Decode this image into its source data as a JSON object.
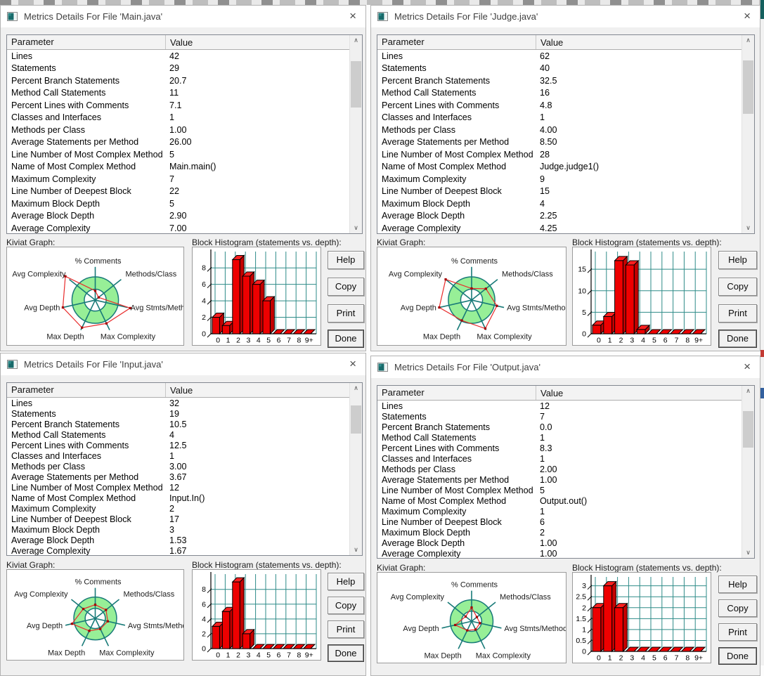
{
  "icons": {
    "close": "×",
    "scroll_up": "∧",
    "scroll_down": "∨",
    "app_icon": "metrics-app-icon"
  },
  "colors": {
    "teal_accent": "#187a78",
    "kiviat_ring_green": "#97ef97",
    "kiviat_line_red": "#e82c2c",
    "bar_red": "#ee0000",
    "bar_side_red": "#c40000",
    "grid_teal": "#2e8b88",
    "titlebar_bg": "#ffffff",
    "window_bg": "#f0f0f0"
  },
  "windows": [
    {
      "title": "Metrics Details For File 'Main.java'",
      "table": {
        "columns": [
          "Parameter",
          "Value"
        ],
        "rows": [
          [
            "Lines",
            "42"
          ],
          [
            "Statements",
            "29"
          ],
          [
            "Percent Branch Statements",
            "20.7"
          ],
          [
            "Method Call Statements",
            "11"
          ],
          [
            "Percent Lines with Comments",
            "7.1"
          ],
          [
            "Classes and Interfaces",
            "1"
          ],
          [
            "Methods per Class",
            "1.00"
          ],
          [
            "Average Statements per Method",
            "26.00"
          ],
          [
            "Line Number of Most Complex Method",
            "5"
          ],
          [
            "Name of Most Complex Method",
            "Main.main()"
          ],
          [
            "Maximum Complexity",
            "7"
          ],
          [
            "Line Number of Deepest Block",
            "22"
          ],
          [
            "Maximum Block Depth",
            "5"
          ],
          [
            "Average Block Depth",
            "2.90"
          ],
          [
            "Average Complexity",
            "7.00"
          ]
        ]
      },
      "sections": {
        "kiviat_label": "Kiviat Graph:",
        "histogram_label": "Block Histogram (statements vs. depth):"
      },
      "buttons": [
        "Help",
        "Copy",
        "Print",
        "Done"
      ],
      "chart_data": {
        "histogram": {
          "type": "bar",
          "title": "Block Histogram (statements vs. depth)",
          "categories": [
            "0",
            "1",
            "2",
            "3",
            "4",
            "5",
            "6",
            "7",
            "8",
            "9+"
          ],
          "values": [
            2,
            1,
            9,
            7,
            6,
            4,
            0,
            0,
            0,
            0
          ],
          "yticks": [
            0,
            2,
            4,
            6,
            8
          ],
          "ylim": [
            0,
            9.3
          ],
          "xlabel": "depth",
          "ylabel": "statements",
          "grid": true
        },
        "kiviat": {
          "type": "radar",
          "title": "Kiviat Graph",
          "axes": [
            "% Comments",
            "Methods/Class",
            "Avg Stmts/Method",
            "Max Complexity",
            "Max Depth",
            "Avg Depth",
            "Avg Complexity"
          ],
          "values_fraction": [
            0.28,
            0.13,
            1.08,
            0.78,
            0.92,
            1.0,
            1.15
          ],
          "ring_inner_fraction": 0.33,
          "ring_outer_fraction": 0.7
        }
      }
    },
    {
      "title": "Metrics Details For File 'Judge.java'",
      "table": {
        "columns": [
          "Parameter",
          "Value"
        ],
        "rows": [
          [
            "Lines",
            "62"
          ],
          [
            "Statements",
            "40"
          ],
          [
            "Percent Branch Statements",
            "32.5"
          ],
          [
            "Method Call Statements",
            "16"
          ],
          [
            "Percent Lines with Comments",
            "4.8"
          ],
          [
            "Classes and Interfaces",
            "1"
          ],
          [
            "Methods per Class",
            "4.00"
          ],
          [
            "Average Statements per Method",
            "8.50"
          ],
          [
            "Line Number of Most Complex Method",
            "28"
          ],
          [
            "Name of Most Complex Method",
            "Judge.judge1()"
          ],
          [
            "Maximum Complexity",
            "9"
          ],
          [
            "Line Number of Deepest Block",
            "15"
          ],
          [
            "Maximum Block Depth",
            "4"
          ],
          [
            "Average Block Depth",
            "2.25"
          ],
          [
            "Average Complexity",
            "4.25"
          ]
        ]
      },
      "sections": {
        "kiviat_label": "Kiviat Graph:",
        "histogram_label": "Block Histogram (statements vs. depth):"
      },
      "buttons": [
        "Help",
        "Copy",
        "Print",
        "Done"
      ],
      "chart_data": {
        "histogram": {
          "type": "bar",
          "title": "Block Histogram (statements vs. depth)",
          "categories": [
            "0",
            "1",
            "2",
            "3",
            "4",
            "5",
            "6",
            "7",
            "8",
            "9+"
          ],
          "values": [
            2,
            4,
            17,
            16,
            1,
            0,
            0,
            0,
            0,
            0
          ],
          "yticks": [
            0,
            5,
            10,
            15
          ],
          "ylim": [
            0,
            17.8
          ],
          "xlabel": "depth",
          "ylabel": "statements",
          "grid": true
        },
        "kiviat": {
          "type": "radar",
          "title": "Kiviat Graph",
          "axes": [
            "% Comments",
            "Methods/Class",
            "Avg Stmts/Method",
            "Max Complexity",
            "Max Depth",
            "Avg Depth",
            "Avg Complexity"
          ],
          "values_fraction": [
            0.35,
            0.55,
            0.78,
            0.95,
            0.68,
            1.0,
            1.0
          ],
          "ring_inner_fraction": 0.33,
          "ring_outer_fraction": 0.7
        }
      }
    },
    {
      "title": "Metrics Details For File 'Input.java'",
      "table": {
        "columns": [
          "Parameter",
          "Value"
        ],
        "rows": [
          [
            "Lines",
            "32"
          ],
          [
            "Statements",
            "19"
          ],
          [
            "Percent Branch Statements",
            "10.5"
          ],
          [
            "Method Call Statements",
            "4"
          ],
          [
            "Percent Lines with Comments",
            "12.5"
          ],
          [
            "Classes and Interfaces",
            "1"
          ],
          [
            "Methods per Class",
            "3.00"
          ],
          [
            "Average Statements per Method",
            "3.67"
          ],
          [
            "Line Number of Most Complex Method",
            "12"
          ],
          [
            "Name of Most Complex Method",
            "Input.In()"
          ],
          [
            "Maximum Complexity",
            "2"
          ],
          [
            "Line Number of Deepest Block",
            "17"
          ],
          [
            "Maximum Block Depth",
            "3"
          ],
          [
            "Average Block Depth",
            "1.53"
          ],
          [
            "Average Complexity",
            "1.67"
          ]
        ]
      },
      "sections": {
        "kiviat_label": "Kiviat Graph:",
        "histogram_label": "Block Histogram (statements vs. depth):"
      },
      "buttons": [
        "Help",
        "Copy",
        "Print",
        "Done"
      ],
      "chart_data": {
        "histogram": {
          "type": "bar",
          "title": "Block Histogram (statements vs. depth)",
          "categories": [
            "0",
            "1",
            "2",
            "3",
            "4",
            "5",
            "6",
            "7",
            "8",
            "9+"
          ],
          "values": [
            3,
            5,
            9,
            2,
            0,
            0,
            0,
            0,
            0,
            0
          ],
          "yticks": [
            0,
            2,
            4,
            6,
            8
          ],
          "ylim": [
            0,
            9.3
          ],
          "xlabel": "depth",
          "ylabel": "statements",
          "grid": true
        },
        "kiviat": {
          "type": "radar",
          "title": "Kiviat Graph",
          "axes": [
            "% Comments",
            "Methods/Class",
            "Avg Stmts/Method",
            "Max Complexity",
            "Max Depth",
            "Avg Depth",
            "Avg Complexity"
          ],
          "values_fraction": [
            0.45,
            0.45,
            0.42,
            0.38,
            0.45,
            0.78,
            0.5
          ],
          "ring_inner_fraction": 0.33,
          "ring_outer_fraction": 0.7
        }
      }
    },
    {
      "title": "Metrics Details For File 'Output.java'",
      "table": {
        "columns": [
          "Parameter",
          "Value"
        ],
        "rows": [
          [
            "Lines",
            "12"
          ],
          [
            "Statements",
            "7"
          ],
          [
            "Percent Branch Statements",
            "0.0"
          ],
          [
            "Method Call Statements",
            "1"
          ],
          [
            "Percent Lines with Comments",
            "8.3"
          ],
          [
            "Classes and Interfaces",
            "1"
          ],
          [
            "Methods per Class",
            "2.00"
          ],
          [
            "Average Statements per Method",
            "1.00"
          ],
          [
            "Line Number of Most Complex Method",
            "5"
          ],
          [
            "Name of Most Complex Method",
            "Output.out()"
          ],
          [
            "Maximum Complexity",
            "1"
          ],
          [
            "Line Number of Deepest Block",
            "6"
          ],
          [
            "Maximum Block Depth",
            "2"
          ],
          [
            "Average Block Depth",
            "1.00"
          ],
          [
            "Average Complexity",
            "1.00"
          ]
        ]
      },
      "sections": {
        "kiviat_label": "Kiviat Graph:",
        "histogram_label": "Block Histogram (statements vs. depth):"
      },
      "buttons": [
        "Help",
        "Copy",
        "Print",
        "Done"
      ],
      "chart_data": {
        "histogram": {
          "type": "bar",
          "title": "Block Histogram (statements vs. depth)",
          "categories": [
            "0",
            "1",
            "2",
            "3",
            "4",
            "5",
            "6",
            "7",
            "8",
            "9+"
          ],
          "values": [
            2,
            3,
            2,
            0,
            0,
            0,
            0,
            0,
            0,
            0
          ],
          "yticks": [
            0,
            0.5,
            1,
            1.5,
            2,
            2.5,
            3
          ],
          "ylim": [
            0,
            3.15
          ],
          "xlabel": "depth",
          "ylabel": "statements",
          "grid": true
        },
        "kiviat": {
          "type": "radar",
          "title": "Kiviat Graph",
          "axes": [
            "% Comments",
            "Methods/Class",
            "Avg Stmts/Method",
            "Max Complexity",
            "Max Depth",
            "Avg Depth",
            "Avg Complexity"
          ],
          "values_fraction": [
            0.45,
            0.22,
            0.28,
            0.3,
            0.33,
            0.55,
            0.25
          ],
          "ring_inner_fraction": 0.33,
          "ring_outer_fraction": 0.7
        }
      }
    }
  ]
}
